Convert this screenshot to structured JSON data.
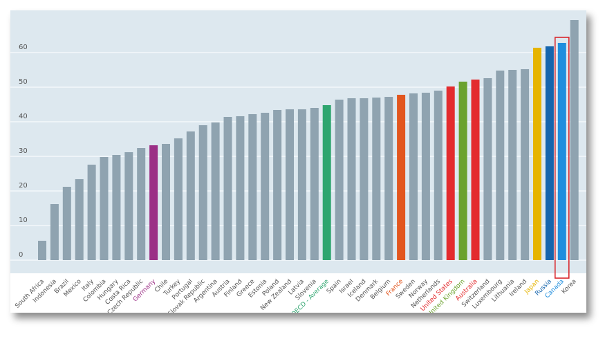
{
  "chart_data": {
    "type": "bar",
    "title": "",
    "xlabel": "",
    "ylabel": "",
    "ylim": [
      0,
      70
    ],
    "yticks": [
      0,
      10,
      20,
      30,
      40,
      50,
      60
    ],
    "grid": true,
    "categories": [
      "South Africa",
      "Indonesia",
      "Brazil",
      "Mexico",
      "Italy",
      "Colombia",
      "Hungary",
      "Costa Rica",
      "Czech Republic",
      "Germany",
      "Chile",
      "Turkey",
      "Portugal",
      "Slovak Republic",
      "Argentina",
      "Austria",
      "Finland",
      "Greece",
      "Estonia",
      "Poland",
      "New Zealand",
      "Latvia",
      "Slovenia",
      "OECD - Average",
      "Spain",
      "Israel",
      "Iceland",
      "Denmark",
      "Belgium",
      "France",
      "Sweden",
      "Norway",
      "Netherlands",
      "United States",
      "United Kingdom",
      "Australia",
      "Switzerland",
      "Luxembourg",
      "Lithuania",
      "Ireland",
      "Japan",
      "Russia",
      "Canada",
      "Korea"
    ],
    "values": [
      5.6,
      16.2,
      21.2,
      23.4,
      27.6,
      29.8,
      30.4,
      31.2,
      32.4,
      33.2,
      33.6,
      35.2,
      37.2,
      39.0,
      39.8,
      41.4,
      41.6,
      42.2,
      42.6,
      43.4,
      43.6,
      43.6,
      44.0,
      44.8,
      46.4,
      46.8,
      46.8,
      47.0,
      47.2,
      47.8,
      48.2,
      48.4,
      49.0,
      50.2,
      51.6,
      52.2,
      52.6,
      54.8,
      55.0,
      55.2,
      61.4,
      61.8,
      62.8,
      69.4
    ],
    "highlights": {
      "Germany": "#9b2f86",
      "OECD - Average": "#2ea56f",
      "France": "#e2561e",
      "United States": "#e32b2e",
      "United Kingdom": "#6ba22e",
      "Australia": "#e32b2e",
      "Japan": "#e6b400",
      "Russia": "#1565ad",
      "Canada": "#1f8ede"
    },
    "default_color": "#8fa3b0",
    "annotation": {
      "type": "box",
      "category": "Canada",
      "color": "#d9262b"
    }
  },
  "colors": {
    "plot_background": "#dde8ef",
    "gridline": "#f4f8fb",
    "tick_label": "#555555",
    "category_label": "#555555"
  }
}
